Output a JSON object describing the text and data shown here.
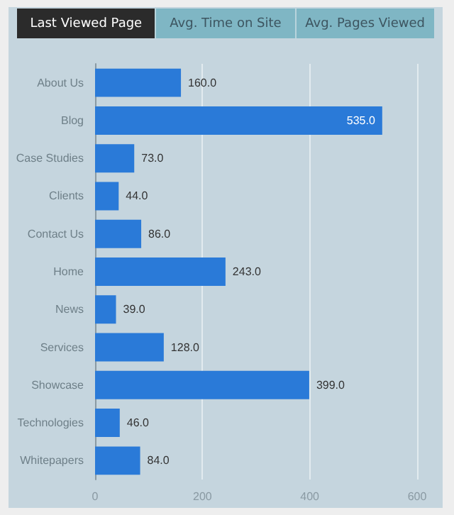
{
  "chart_data": {
    "type": "bar",
    "orientation": "horizontal",
    "title": "Last Viewed Page",
    "annotations": [
      "Avg. Time on Site",
      "Avg. Pages Viewed"
    ],
    "categories": [
      "About Us",
      "Blog",
      "Case Studies",
      "Clients",
      "Contact Us",
      "Home",
      "News",
      "Services",
      "Showcase",
      "Technologies",
      "Whitepapers"
    ],
    "values": [
      160,
      535,
      73,
      44,
      86,
      243,
      39,
      128,
      399,
      46,
      84
    ],
    "value_labels": [
      "160.0",
      "535.0",
      "73.0",
      "44.0",
      "86.0",
      "243.0",
      "39.0",
      "128.0",
      "399.0",
      "46.0",
      "84.0"
    ],
    "color": "#2a7ad8",
    "xlim": [
      0,
      600
    ],
    "xticks": [
      0,
      200,
      400,
      600
    ],
    "grid": "x"
  }
}
